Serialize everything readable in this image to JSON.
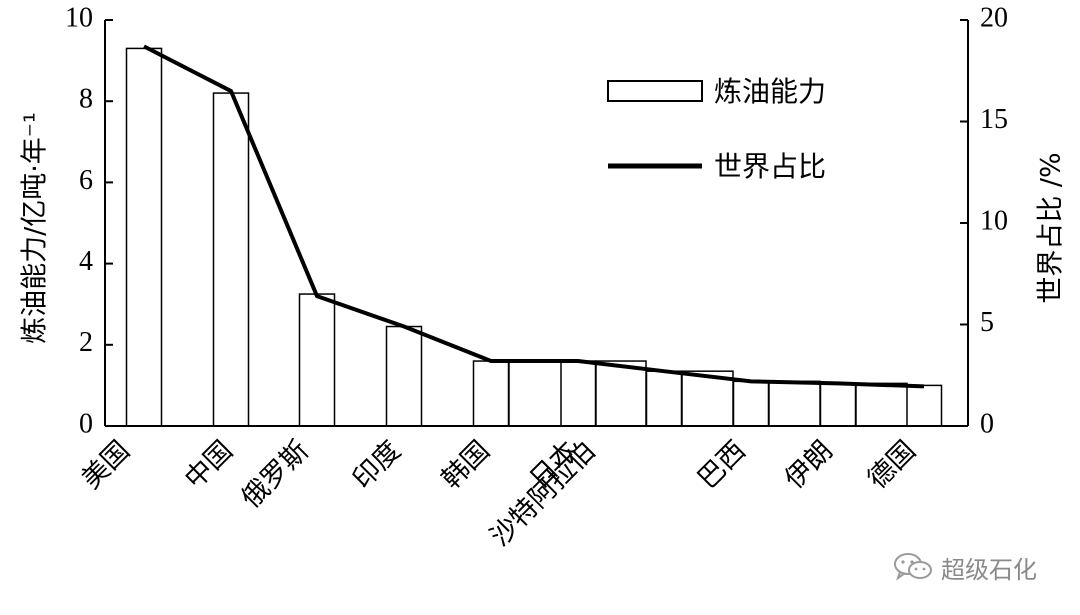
{
  "chart_data": {
    "type": "bar",
    "categories": [
      "美国",
      "中国",
      "俄罗斯",
      "印度",
      "韩国",
      "日本",
      "沙特阿拉伯",
      "巴西",
      "伊朗",
      "德国"
    ],
    "series": [
      {
        "name": "炼油能力",
        "type": "bar",
        "axis": "left",
        "values": [
          9.3,
          8.2,
          3.25,
          2.45,
          1.6,
          1.6,
          1.35,
          1.1,
          1.05,
          1.0
        ]
      },
      {
        "name": "世界占比",
        "type": "line",
        "axis": "right",
        "values": [
          18.7,
          16.5,
          6.4,
          4.9,
          3.2,
          3.2,
          2.7,
          2.2,
          2.1,
          1.95
        ]
      }
    ],
    "ylabel": "炼油能力/亿吨·年⁻¹",
    "ylabel_secondary": "世界占比 /%",
    "ylim": [
      0,
      10
    ],
    "ylim_secondary": [
      0,
      20
    ],
    "yticks": [
      "0",
      "2",
      "4",
      "6",
      "8",
      "10"
    ],
    "yticks_secondary": [
      "0",
      "5",
      "10",
      "15",
      "20"
    ],
    "legend_position": "top-right",
    "grid": false
  },
  "watermark": {
    "text": "超级石化",
    "icon": "wechat-icon"
  }
}
